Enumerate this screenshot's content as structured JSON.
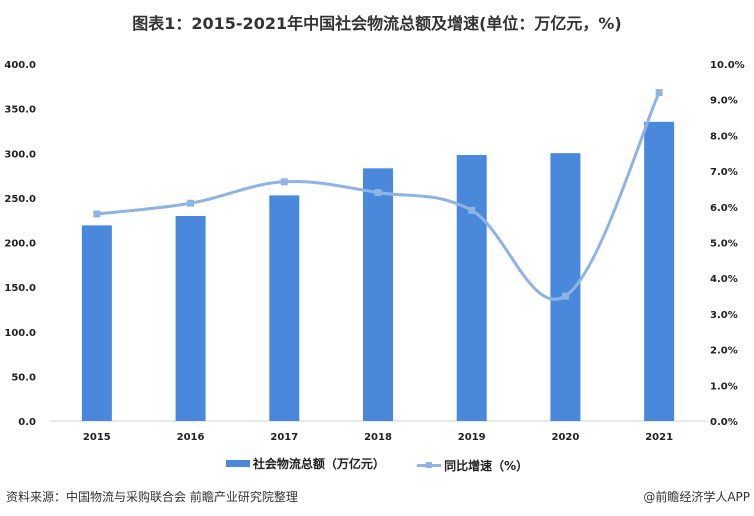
{
  "chart_data": {
    "type": "bar+line",
    "title": "图表1：2015-2021年中国社会物流总额及增速(单位：万亿元，%)",
    "categories": [
      "2015",
      "2016",
      "2017",
      "2018",
      "2019",
      "2020",
      "2021"
    ],
    "series": [
      {
        "name": "社会物流总额（万亿元）",
        "type": "bar",
        "axis": "left",
        "values": [
          219.2,
          229.7,
          252.8,
          283.1,
          298.0,
          300.1,
          335.2
        ]
      },
      {
        "name": "同比增速（%）",
        "type": "line",
        "axis": "right",
        "smooth": true,
        "values": [
          5.8,
          6.1,
          6.7,
          6.4,
          5.9,
          3.5,
          9.2
        ]
      }
    ],
    "y_left": {
      "range": [
        0,
        400
      ],
      "ticks": [
        "0.0",
        "50.0",
        "100.0",
        "150.0",
        "200.0",
        "250.0",
        "300.0",
        "350.0",
        "400.0"
      ]
    },
    "y_right": {
      "range": [
        0,
        10
      ],
      "ticks": [
        "0.0%",
        "1.0%",
        "2.0%",
        "3.0%",
        "4.0%",
        "5.0%",
        "6.0%",
        "7.0%",
        "8.0%",
        "9.0%",
        "10.0%"
      ]
    },
    "grid": false,
    "legend_position": "bottom",
    "colors": {
      "bar": "#4a88dc",
      "line": "#8fb4e3"
    }
  },
  "footer": {
    "source": "资料来源：中国物流与采购联合会 前瞻产业研究院整理",
    "credit": "@前瞻经济学人APP"
  }
}
